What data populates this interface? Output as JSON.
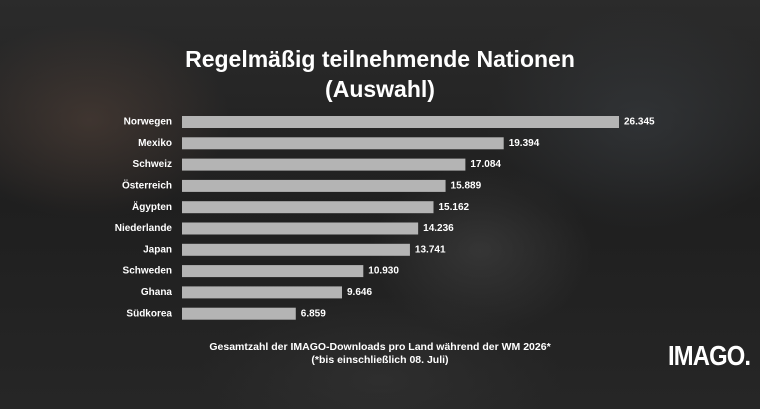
{
  "chart_data": {
    "type": "bar",
    "orientation": "horizontal",
    "title": "Regelmäßig teilnehmende Nationen (Auswahl)",
    "categories": [
      "Norwegen",
      "Mexiko",
      "Schweiz",
      "Österreich",
      "Ägypten",
      "Niederlande",
      "Japan",
      "Schweden",
      "Ghana",
      "Südkorea"
    ],
    "values": [
      26345,
      19394,
      17084,
      15889,
      15162,
      14236,
      13741,
      10930,
      9646,
      6859
    ],
    "value_labels": [
      "26.345",
      "19.394",
      "17.084",
      "15.889",
      "15.162",
      "14.236",
      "13.741",
      "10.930",
      "9.646",
      "6.859"
    ],
    "color": "#b4b4b4",
    "footnote": [
      "Gesamtzahl der IMAGO-Downloads pro Land während der WM 2026*",
      "(*bis einschließlich 08. Juli)"
    ],
    "logo": "IMAGO."
  }
}
